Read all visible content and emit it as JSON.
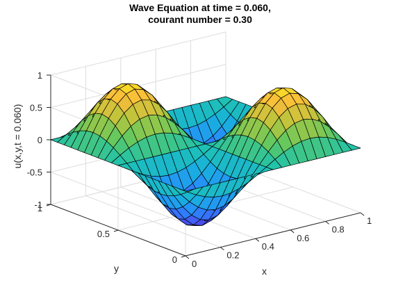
{
  "chart_data": {
    "type": "surface",
    "title_line1": "Wave Equation at time = 0.060,",
    "title_line2": "courant number = 0.30",
    "xlabel": "x",
    "ylabel": "y",
    "zlabel": "u(x,y,t = 0.060)",
    "xlim": [
      0,
      1
    ],
    "ylim": [
      0,
      1
    ],
    "zlim": [
      -1,
      1
    ],
    "x_ticks": [
      {
        "value": 0,
        "label": "0"
      },
      {
        "value": 0.2,
        "label": "0.2"
      },
      {
        "value": 0.4,
        "label": "0.4"
      },
      {
        "value": 0.6,
        "label": "0.6"
      },
      {
        "value": 0.8,
        "label": "0.8"
      },
      {
        "value": 1,
        "label": "1"
      }
    ],
    "y_ticks": [
      {
        "value": 0,
        "label": "0"
      },
      {
        "value": 0.5,
        "label": "0.5"
      },
      {
        "value": 1,
        "label": "1"
      }
    ],
    "z_ticks": [
      {
        "value": -1,
        "label": "-1"
      },
      {
        "value": -0.5,
        "label": "-0.5"
      },
      {
        "value": 0,
        "label": "0"
      },
      {
        "value": 0.5,
        "label": "0.5"
      },
      {
        "value": 1,
        "label": "1"
      }
    ],
    "grid": true,
    "surface": {
      "function": "u = A*sin(2*pi*x)*sin(2*pi*y)",
      "amplitude": -0.9,
      "grid_points": 21
    },
    "colormap": [
      "#3e26a8",
      "#4852f3",
      "#2989fe",
      "#19b0df",
      "#1ec2b0",
      "#5cc863",
      "#b5c63d",
      "#f9bb3a",
      "#f9fb14"
    ]
  }
}
